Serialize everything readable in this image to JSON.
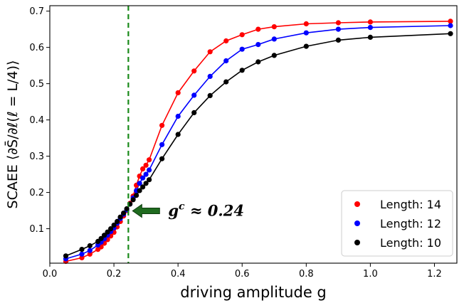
{
  "chart_data": {
    "type": "line",
    "title": "",
    "xlabel": "driving amplitude g",
    "ylabel": "SCAEE ⟨∂S̄/∂ℓ(ℓ = L/4)⟩",
    "xlim": [
      0.0,
      1.27
    ],
    "ylim": [
      0.005,
      0.715
    ],
    "xticks": [
      0.0,
      0.2,
      0.4,
      0.6,
      0.8,
      1.0,
      1.2
    ],
    "yticks": [
      0.1,
      0.2,
      0.3,
      0.4,
      0.5,
      0.6,
      0.7
    ],
    "xtick_labels": [
      "0.0",
      "0.2",
      "0.4",
      "0.6",
      "0.8",
      "1.0",
      "1.2"
    ],
    "ytick_labels": [
      "0.1",
      "0.2",
      "0.3",
      "0.4",
      "0.5",
      "0.6",
      "0.7"
    ],
    "legend_position": "bottom-right",
    "critical_line": {
      "x": 0.245,
      "color": "#1a8a1a",
      "style": "dashed"
    },
    "annotation": {
      "text": "g^c ≈ 0.24",
      "main": "g",
      "sup": "c",
      "rest": " ≈ 0.24",
      "arrow_color": "#1f6b1f",
      "points_to": [
        0.245,
        0.155
      ]
    },
    "series": [
      {
        "name": "Length: 14",
        "color": "#ff0000",
        "x": [
          0.05,
          0.1,
          0.125,
          0.15,
          0.16,
          0.17,
          0.18,
          0.19,
          0.2,
          0.21,
          0.22,
          0.23,
          0.24,
          0.25,
          0.26,
          0.27,
          0.28,
          0.29,
          0.3,
          0.31,
          0.35,
          0.4,
          0.45,
          0.5,
          0.55,
          0.6,
          0.65,
          0.7,
          0.8,
          0.9,
          1.0,
          1.25
        ],
        "y": [
          0.01,
          0.02,
          0.03,
          0.043,
          0.05,
          0.06,
          0.07,
          0.08,
          0.09,
          0.105,
          0.12,
          0.135,
          0.15,
          0.17,
          0.19,
          0.22,
          0.245,
          0.265,
          0.275,
          0.29,
          0.385,
          0.475,
          0.535,
          0.588,
          0.618,
          0.635,
          0.65,
          0.657,
          0.665,
          0.668,
          0.67,
          0.672
        ]
      },
      {
        "name": "Length: 12",
        "color": "#0000ff",
        "x": [
          0.05,
          0.1,
          0.125,
          0.15,
          0.16,
          0.17,
          0.18,
          0.19,
          0.2,
          0.21,
          0.22,
          0.23,
          0.24,
          0.25,
          0.26,
          0.27,
          0.28,
          0.29,
          0.3,
          0.31,
          0.35,
          0.4,
          0.45,
          0.5,
          0.55,
          0.6,
          0.65,
          0.7,
          0.8,
          0.9,
          1.0,
          1.25
        ],
        "y": [
          0.017,
          0.03,
          0.04,
          0.055,
          0.063,
          0.072,
          0.082,
          0.092,
          0.102,
          0.115,
          0.128,
          0.14,
          0.152,
          0.168,
          0.185,
          0.205,
          0.225,
          0.24,
          0.25,
          0.262,
          0.332,
          0.41,
          0.468,
          0.52,
          0.563,
          0.595,
          0.608,
          0.623,
          0.64,
          0.65,
          0.655,
          0.66
        ]
      },
      {
        "name": "Length: 10",
        "color": "#000000",
        "x": [
          0.05,
          0.1,
          0.125,
          0.15,
          0.16,
          0.17,
          0.18,
          0.19,
          0.2,
          0.21,
          0.22,
          0.23,
          0.24,
          0.25,
          0.26,
          0.27,
          0.28,
          0.29,
          0.3,
          0.31,
          0.35,
          0.4,
          0.45,
          0.5,
          0.55,
          0.6,
          0.65,
          0.7,
          0.8,
          0.9,
          1.0,
          1.25
        ],
        "y": [
          0.025,
          0.043,
          0.053,
          0.065,
          0.073,
          0.082,
          0.091,
          0.1,
          0.11,
          0.12,
          0.132,
          0.143,
          0.155,
          0.168,
          0.18,
          0.192,
          0.205,
          0.215,
          0.225,
          0.235,
          0.293,
          0.36,
          0.42,
          0.467,
          0.505,
          0.537,
          0.56,
          0.578,
          0.603,
          0.62,
          0.628,
          0.638
        ]
      }
    ]
  }
}
